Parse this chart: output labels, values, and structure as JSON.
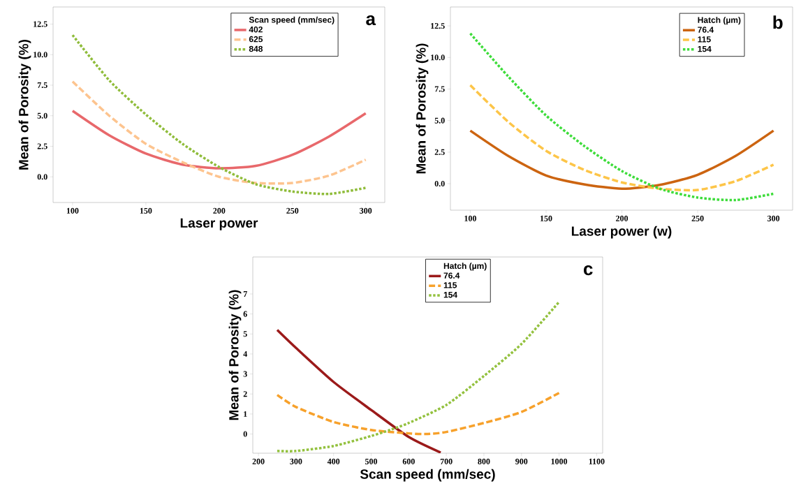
{
  "chart_data": [
    {
      "type": "line",
      "xlabel": "Laser power",
      "ylabel": "Mean of Porosity (%)",
      "legend_title": "Scan speed (mm/sec)",
      "annotations": [
        "a"
      ],
      "x": [
        100,
        125,
        150,
        175,
        200,
        225,
        250,
        275,
        300
      ],
      "series": [
        {
          "name": "402",
          "color": "#e8686b",
          "line_style": "solid",
          "values": [
            5.4,
            3.4,
            1.9,
            1.0,
            0.7,
            0.9,
            1.8,
            3.3,
            5.2
          ]
        },
        {
          "name": "625",
          "color": "#fdc48f",
          "line_style": "dashed",
          "values": [
            7.8,
            5.0,
            2.7,
            1.2,
            0.0,
            -0.5,
            -0.5,
            0.1,
            1.4
          ]
        },
        {
          "name": "848",
          "color": "#8fbc3a",
          "line_style": "dotted",
          "values": [
            11.6,
            7.9,
            5.1,
            2.7,
            0.8,
            -0.6,
            -1.2,
            -1.4,
            -0.9
          ]
        }
      ],
      "xlim": [
        86.7,
        313
      ],
      "ylim": [
        -2.1,
        13.9
      ],
      "xticks": [
        100,
        150,
        200,
        250,
        300
      ],
      "yticks": [
        {
          "value": 0,
          "label": "0.0"
        },
        2.5,
        {
          "value": 5,
          "label": "5.0"
        },
        7.5,
        {
          "value": 10,
          "label": "10.0"
        },
        12.5
      ],
      "legend": "top right"
    },
    {
      "type": "line",
      "xlabel": "Laser power (w)",
      "ylabel": "Mean of Porosity (%)",
      "legend_title": "Hatch (µm)",
      "annotations": [
        "b"
      ],
      "x": [
        100,
        125,
        150,
        175,
        200,
        225,
        250,
        275,
        300
      ],
      "series": [
        {
          "name": "76.4",
          "color": "#cc6410",
          "line_style": "solid",
          "values": [
            4.2,
            2.2,
            0.65,
            -0.05,
            -0.4,
            -0.1,
            0.7,
            2.2,
            4.2
          ]
        },
        {
          "name": "115",
          "color": "#fdc548",
          "line_style": "dashed",
          "values": [
            7.8,
            4.9,
            2.6,
            1.1,
            0.1,
            -0.4,
            -0.5,
            0.2,
            1.5
          ]
        },
        {
          "name": "154",
          "color": "#3ddc3a",
          "line_style": "dotted",
          "values": [
            11.9,
            8.5,
            5.4,
            3.0,
            1.0,
            -0.4,
            -1.1,
            -1.3,
            -0.8
          ]
        }
      ],
      "xlim": [
        86.9,
        312.6
      ],
      "ylim": [
        -2.1,
        14.0
      ],
      "xticks": [
        100,
        150,
        200,
        250,
        300
      ],
      "yticks": [
        {
          "value": 0,
          "label": "0.0"
        },
        2.5,
        {
          "value": 5,
          "label": "5.0"
        },
        7.5,
        {
          "value": 10,
          "label": "10.0"
        },
        12.5
      ],
      "legend": "top right"
    },
    {
      "type": "line",
      "xlabel": "Scan speed (mm/sec)",
      "ylabel": "Mean of Porosity (%)",
      "legend_title": "Hatch (µm)",
      "annotations": [
        "c"
      ],
      "series": [
        {
          "name": "76.4",
          "color": "#9b1a1a",
          "line_style": "solid",
          "x": [
            250,
            300,
            400,
            500,
            600,
            685
          ],
          "values": [
            5.2,
            4.3,
            2.6,
            1.2,
            -0.15,
            -0.93
          ]
        },
        {
          "name": "115",
          "color": "#f7a12b",
          "line_style": "dashed",
          "x": [
            250,
            300,
            400,
            500,
            600,
            650,
            700,
            800,
            900,
            1000
          ],
          "values": [
            1.95,
            1.35,
            0.6,
            0.2,
            0.03,
            0.0,
            0.1,
            0.55,
            1.1,
            2.05
          ]
        },
        {
          "name": "154",
          "color": "#93c13e",
          "line_style": "dotted",
          "x": [
            250,
            300,
            400,
            500,
            550,
            600,
            700,
            800,
            900,
            1000
          ],
          "values": [
            -0.85,
            -0.85,
            -0.6,
            -0.1,
            0.2,
            0.55,
            1.45,
            2.9,
            4.5,
            6.6
          ]
        }
      ],
      "xlim": [
        185,
        1116
      ],
      "ylim": [
        -0.96,
        8.85
      ],
      "xticks": [
        200,
        300,
        400,
        500,
        600,
        700,
        800,
        900,
        1000,
        1100
      ],
      "yticks": [
        0,
        1,
        2,
        3,
        4,
        5,
        6,
        7
      ],
      "legend": "top"
    }
  ]
}
